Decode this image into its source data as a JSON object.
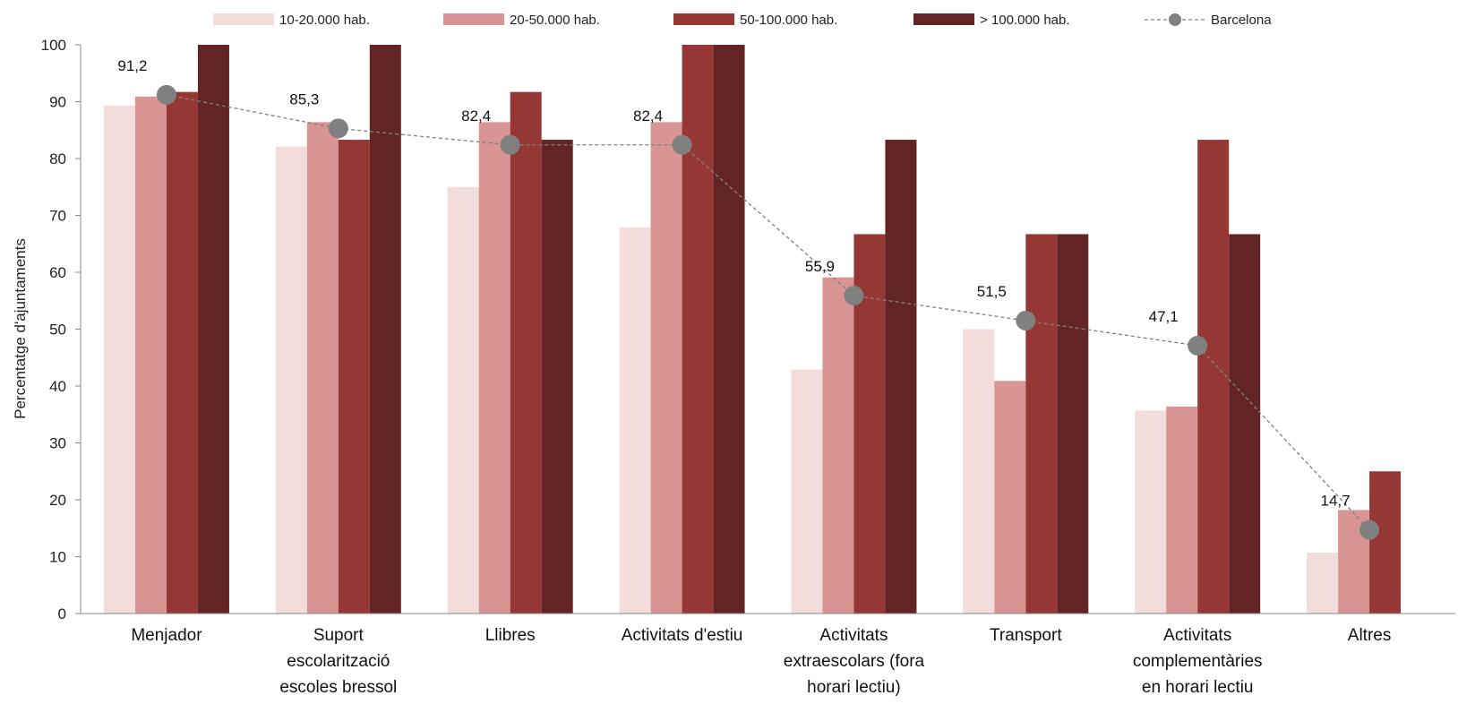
{
  "chart_data": {
    "type": "bar",
    "title": "",
    "xlabel": "",
    "ylabel": "Percentatge d'ajuntaments",
    "ylim": [
      0,
      100
    ],
    "yticks": [
      0,
      10,
      20,
      30,
      40,
      50,
      60,
      70,
      80,
      90,
      100
    ],
    "categories": [
      [
        "Menjador"
      ],
      [
        "Suport",
        "escolarització",
        "escoles bressol"
      ],
      [
        "Llibres"
      ],
      [
        "Activitats d'estiu"
      ],
      [
        "Activitats",
        "extraescolars (fora",
        "horari lectiu)"
      ],
      [
        "Transport"
      ],
      [
        "Activitats",
        "complementàries",
        "en horari lectiu"
      ],
      [
        "Altres"
      ]
    ],
    "series": [
      {
        "name": "10-20.000 hab.",
        "color": "#f2dcdc",
        "values": [
          89.3,
          82.1,
          75.0,
          67.9,
          42.9,
          50.0,
          35.7,
          10.7
        ]
      },
      {
        "name": "20-50.000 hab.",
        "color": "#d99594",
        "values": [
          90.9,
          86.4,
          86.4,
          86.4,
          59.1,
          40.9,
          36.4,
          18.2
        ]
      },
      {
        "name": "50-100.000 hab.",
        "color": "#953735",
        "values": [
          91.7,
          83.3,
          91.7,
          100,
          66.7,
          66.7,
          83.3,
          25.0
        ]
      },
      {
        "name": "> 100.000 hab.",
        "color": "#632523",
        "values": [
          100,
          100,
          83.3,
          100,
          83.3,
          66.7,
          66.7,
          null
        ]
      }
    ],
    "line_series": {
      "name": "Barcelona",
      "color": "#808080",
      "values": [
        91.2,
        85.3,
        82.4,
        82.4,
        55.9,
        51.5,
        47.1,
        14.7
      ],
      "labels": [
        "91,2",
        "85,3",
        "82,4",
        "82,4",
        "55,9",
        "51,5",
        "47,1",
        "14,7"
      ]
    },
    "legend_position": "top",
    "grid": false
  }
}
